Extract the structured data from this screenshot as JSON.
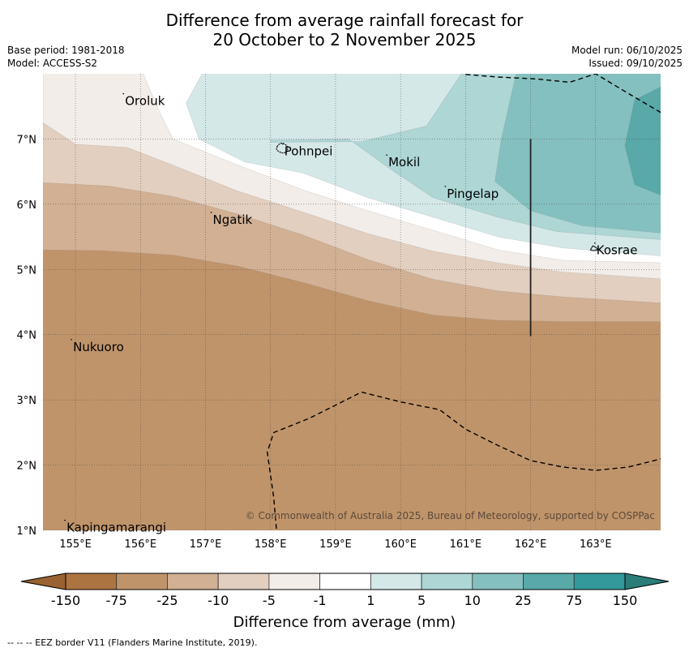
{
  "header": {
    "title_line1": "Difference from average rainfall forecast for",
    "title_line2": "20 October to 2 November 2025",
    "base_period": "Base period: 1981-2018",
    "model": "Model: ACCESS-S2",
    "model_run": "Model run: 06/10/2025",
    "issued": "Issued: 09/10/2025"
  },
  "map": {
    "lon_range": [
      154.5,
      164.0
    ],
    "lat_range": [
      1.0,
      8.0
    ],
    "lon_ticks": [
      155,
      156,
      157,
      158,
      159,
      160,
      161,
      162,
      163
    ],
    "lat_ticks": [
      1,
      2,
      3,
      4,
      5,
      6,
      7
    ],
    "lon_tick_labels": [
      "155°E",
      "156°E",
      "157°E",
      "158°E",
      "159°E",
      "160°E",
      "161°E",
      "162°E",
      "163°E"
    ],
    "lat_tick_labels": [
      "1°N",
      "2°N",
      "3°N",
      "4°N",
      "5°N",
      "6°N",
      "7°N"
    ],
    "places": [
      {
        "name": "Oroluk",
        "lon": 155.75,
        "lat": 7.62
      },
      {
        "name": "Pohnpei",
        "lon": 158.2,
        "lat": 6.85
      },
      {
        "name": "Mokil",
        "lon": 159.8,
        "lat": 6.68
      },
      {
        "name": "Pingelap",
        "lon": 160.7,
        "lat": 6.2
      },
      {
        "name": "Ngatik",
        "lon": 157.1,
        "lat": 5.8
      },
      {
        "name": "Kosrae",
        "lon": 163.0,
        "lat": 5.33
      },
      {
        "name": "Nukuoro",
        "lon": 154.95,
        "lat": 3.85
      },
      {
        "name": "Kapingamarangi",
        "lon": 154.85,
        "lat": 1.08
      }
    ],
    "copyright": "© Commonwealth of Australia 2025, Bureau of Meteorology, supported by COSPPac",
    "background_color": "#c0946a"
  },
  "colorbar": {
    "title": "Difference from average (mm)",
    "tick_labels": [
      "-150",
      "-75",
      "-25",
      "-10",
      "-5",
      "-1",
      "1",
      "5",
      "10",
      "25",
      "75",
      "150"
    ],
    "under_color": "#9a6230",
    "over_color": "#2a7d78",
    "bin_colors": [
      "#ac7441",
      "#c0946a",
      "#d1b093",
      "#e3cfbf",
      "#f2ede8",
      "#ffffff",
      "#d4e8e7",
      "#add6d5",
      "#84c0bf",
      "#58a9a8",
      "#33999a"
    ]
  },
  "footnote": "--  --  -- EEZ border V11 (Flanders Marine Institute, 2019)."
}
